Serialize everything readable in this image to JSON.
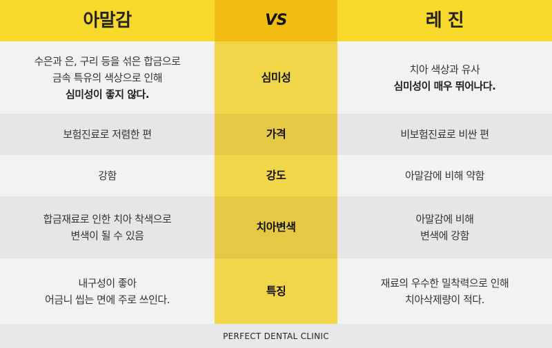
{
  "header": {
    "left": "아말감",
    "middle": "VS",
    "right": "레 진"
  },
  "rows": [
    {
      "label": "심미성",
      "left": [
        "수은과 은, 구리 등을 섞은 합금으로",
        "금속 특유의 색상으로 인해",
        "심미성이 좋지 않다."
      ],
      "right": [
        "치아 색상과 유사",
        "심미성이 매우 뛰어나다."
      ]
    },
    {
      "label": "가격",
      "left": [
        "보험진료로 저렴한 편"
      ],
      "right": [
        "비보험진료로 비싼 편"
      ]
    },
    {
      "label": "강도",
      "left": [
        "강함"
      ],
      "right": [
        "아말감에 비해 약함"
      ]
    },
    {
      "label": "치아변색",
      "left": [
        "합금재료로 인한 치아 착색으로",
        "변색이 될 수 있음"
      ],
      "right": [
        "아말감에 비해",
        "변색에 강함"
      ]
    },
    {
      "label": "특징",
      "left": [
        "내구성이 좋아",
        "어금니 씹는 면에 주로 쓰인다."
      ],
      "right": [
        "재료의 우수한 밀착력으로 인해",
        "치아삭제량이 적다."
      ]
    }
  ],
  "footer": "PERFECT DENTAL CLINIC",
  "colors": {
    "header_yellow": "#f6d92b",
    "vs_orange": "#f2bd12",
    "middle_yellow": "#f0d648"
  }
}
